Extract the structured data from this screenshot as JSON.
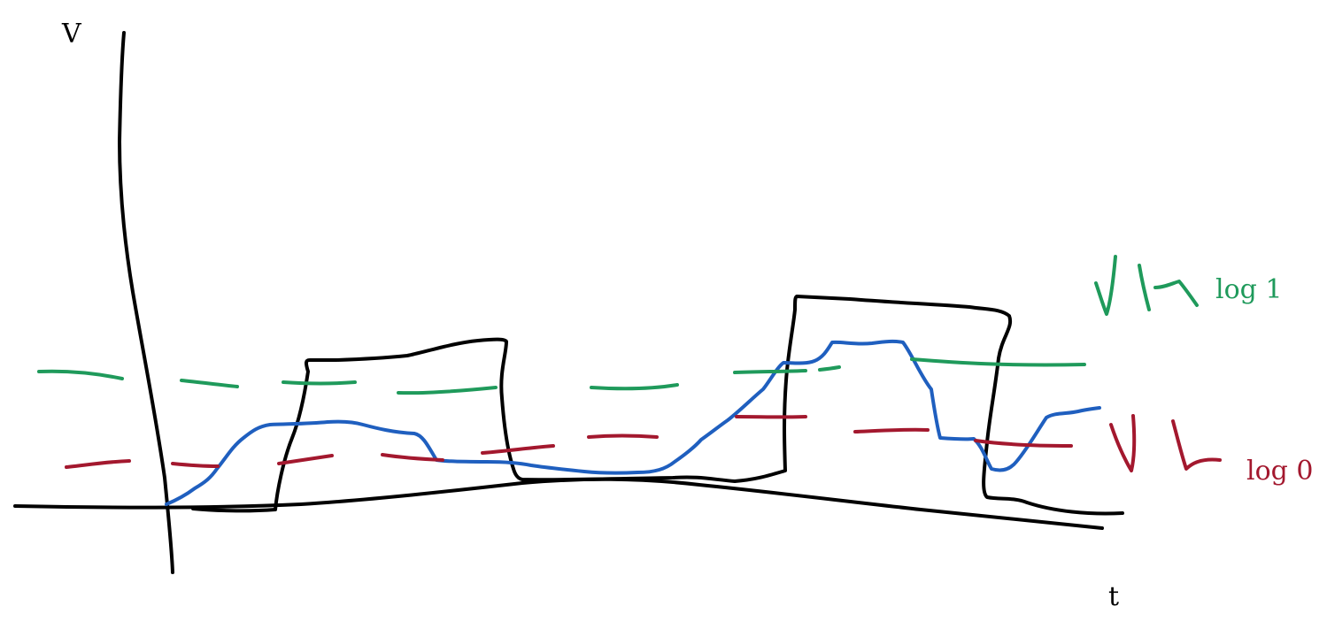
{
  "diagram": {
    "axes": {
      "y_label": "V",
      "x_label": "t"
    },
    "thresholds": {
      "high": {
        "label": "log 1",
        "color": "#1f9a5b"
      },
      "low": {
        "label": "log 0",
        "color": "#a3182e"
      }
    },
    "signals": {
      "ideal_square_wave": {
        "color": "#000000"
      },
      "actual_signal": {
        "color": "#1f5fbf"
      }
    }
  }
}
